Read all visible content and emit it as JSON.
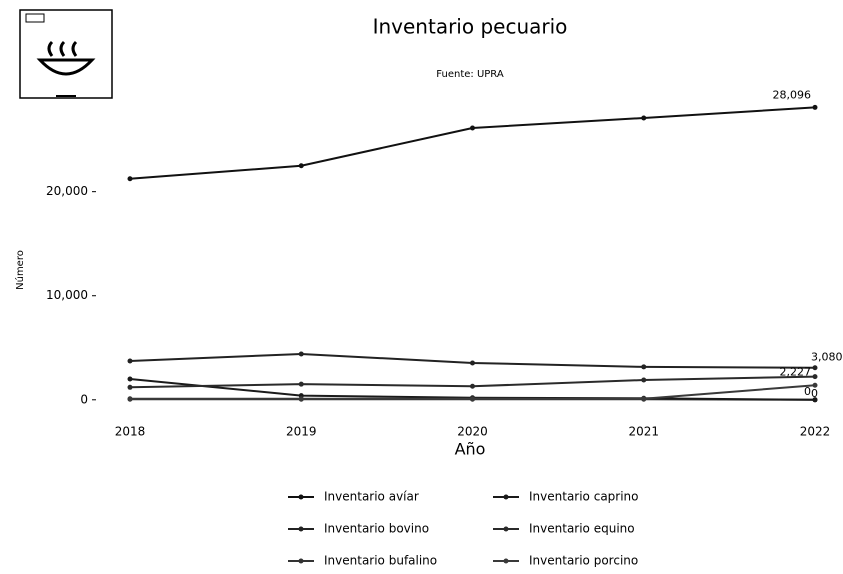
{
  "chart_data": {
    "type": "line",
    "title": "Inventario pecuario",
    "subtitle": "Fuente: UPRA",
    "x_label": "Año",
    "y_label": "Número",
    "categories": [
      "2018",
      "2019",
      "2020",
      "2021",
      "2022"
    ],
    "ylim": [
      -500,
      29000
    ],
    "yticks": [
      {
        "value": 0,
        "label": "0"
      },
      {
        "value": 10000,
        "label": "10,000"
      },
      {
        "value": 20000,
        "label": "20,000"
      }
    ],
    "legend": "bottom",
    "series": [
      {
        "name": "Inventario avíar",
        "color": "#111111",
        "values": [
          21240,
          22490,
          26120,
          27080,
          28096
        ],
        "value_labels": [
          null,
          null,
          null,
          null,
          "28,096"
        ]
      },
      {
        "name": "Inventario bovino",
        "color": "#222222",
        "values": [
          3730,
          4400,
          3540,
          3160,
          3080
        ],
        "value_labels": [
          null,
          null,
          null,
          null,
          "3,080"
        ]
      },
      {
        "name": "Inventario bufalino",
        "color": "#333333",
        "values": [
          50,
          50,
          50,
          50,
          0
        ],
        "value_labels": [
          null,
          null,
          null,
          null,
          "0"
        ]
      },
      {
        "name": "Inventario caprino",
        "color": "#1a1a1a",
        "values": [
          2000,
          400,
          200,
          150,
          0
        ],
        "value_labels": [
          null,
          null,
          null,
          null,
          "0"
        ]
      },
      {
        "name": "Inventario equino",
        "color": "#2a2a2a",
        "values": [
          1200,
          1500,
          1300,
          1900,
          2227
        ],
        "value_labels": [
          null,
          null,
          null,
          null,
          "2,227"
        ]
      },
      {
        "name": "Inventario porcino",
        "color": "#3a3a3a",
        "values": [
          100,
          100,
          100,
          100,
          1400
        ]
      }
    ]
  }
}
